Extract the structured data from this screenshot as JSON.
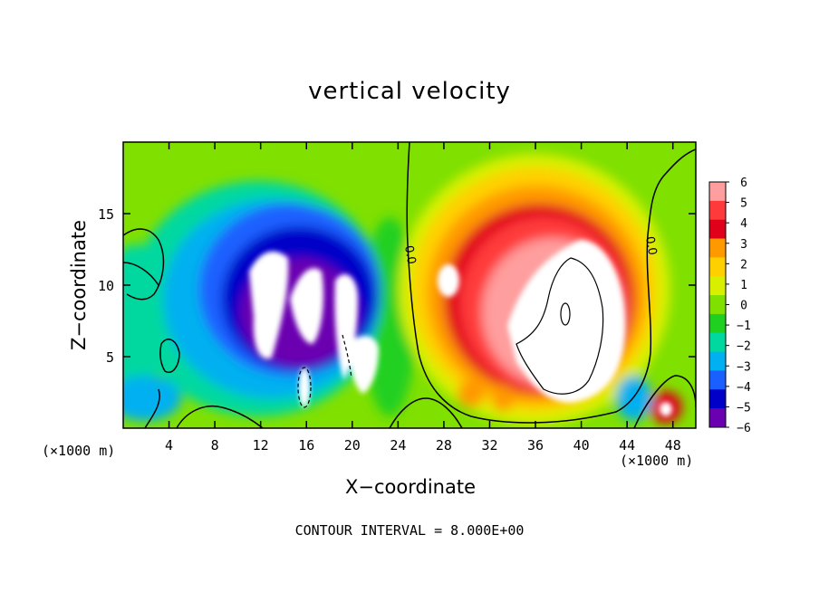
{
  "chart_data": {
    "type": "heatmap",
    "title": "vertical velocity",
    "xlabel": "X−coordinate",
    "ylabel": "Z−coordinate",
    "x_unit": "(×1000 m)",
    "footer": "CONTOUR INTERVAL = 8.000E+00",
    "xlim": [
      0,
      50
    ],
    "ylim": [
      0,
      20
    ],
    "x_ticks": [
      "4",
      "8",
      "12",
      "16",
      "20",
      "24",
      "28",
      "32",
      "36",
      "40",
      "44",
      "48"
    ],
    "y_ticks": [
      "5",
      "10",
      "15"
    ],
    "colorbar": {
      "labels": [
        "6",
        "5",
        "4",
        "3",
        "2",
        "1",
        "0",
        "−1",
        "−2",
        "−3",
        "−4",
        "−5",
        "−6"
      ],
      "levels": [
        6,
        5,
        4,
        3,
        2,
        1,
        0,
        -1,
        -2,
        -3,
        -4,
        -5,
        -6
      ],
      "colors": [
        "#ff9e9e",
        "#ff3a3a",
        "#e0001a",
        "#ff9900",
        "#ffd000",
        "#d8f000",
        "#80e000",
        "#20d020",
        "#00d8a0",
        "#00b0f0",
        "#1a60ff",
        "#0000c8",
        "#6a00b0"
      ]
    },
    "contour_labels": [
      "0.0",
      "0.0"
    ],
    "features": [
      {
        "name": "updraft core",
        "x_center": 37.5,
        "z_center": 9,
        "sign": "positive"
      },
      {
        "name": "downdraft core",
        "x_center": 15,
        "z_center": 9,
        "sign": "negative"
      }
    ]
  }
}
